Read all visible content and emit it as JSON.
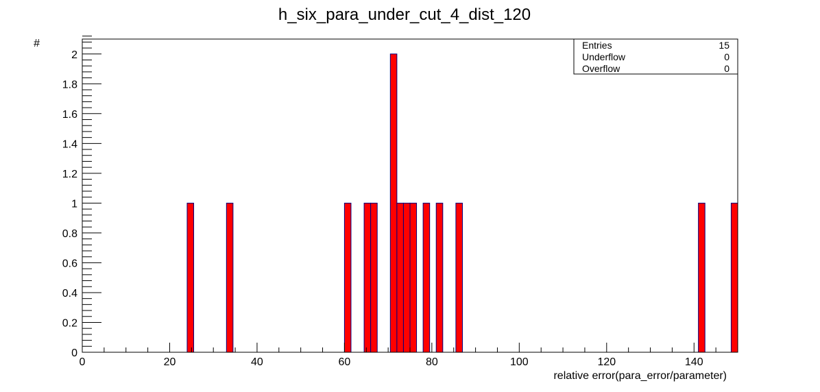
{
  "chart_data": {
    "type": "bar",
    "title": "h_six_para_under_cut_4_dist_120",
    "xlabel": "relative error(para_error/parameter)",
    "ylabel": "#",
    "xlim": [
      0,
      150
    ],
    "ylim": [
      0,
      2.1
    ],
    "x_ticks": [
      0,
      20,
      40,
      60,
      80,
      100,
      120,
      140
    ],
    "y_ticks": [
      0,
      0.2,
      0.4,
      0.6,
      0.8,
      1,
      1.2,
      1.4,
      1.6,
      1.8,
      2
    ],
    "bin_width": 1.5,
    "bins": [
      {
        "x_low": 24.0,
        "x_high": 25.5,
        "value": 1
      },
      {
        "x_low": 33.0,
        "x_high": 34.5,
        "value": 1
      },
      {
        "x_low": 60.0,
        "x_high": 61.5,
        "value": 1
      },
      {
        "x_low": 64.5,
        "x_high": 66.0,
        "value": 1
      },
      {
        "x_low": 66.0,
        "x_high": 67.5,
        "value": 1
      },
      {
        "x_low": 70.5,
        "x_high": 72.0,
        "value": 2
      },
      {
        "x_low": 72.0,
        "x_high": 73.5,
        "value": 1
      },
      {
        "x_low": 73.5,
        "x_high": 75.0,
        "value": 1
      },
      {
        "x_low": 75.0,
        "x_high": 76.5,
        "value": 1
      },
      {
        "x_low": 78.0,
        "x_high": 79.5,
        "value": 1
      },
      {
        "x_low": 81.0,
        "x_high": 82.5,
        "value": 1
      },
      {
        "x_low": 85.5,
        "x_high": 87.0,
        "value": 1
      },
      {
        "x_low": 141.0,
        "x_high": 142.5,
        "value": 1
      },
      {
        "x_low": 148.5,
        "x_high": 150.0,
        "value": 1
      }
    ],
    "fill_color": "#ff0000",
    "line_color": "#00007f",
    "grid": false,
    "stats_box": {
      "placement": "top-right",
      "rows": [
        {
          "label": "Entries",
          "value": "15"
        },
        {
          "label": "Underflow",
          "value": "0"
        },
        {
          "label": "Overflow",
          "value": "0"
        }
      ]
    }
  }
}
